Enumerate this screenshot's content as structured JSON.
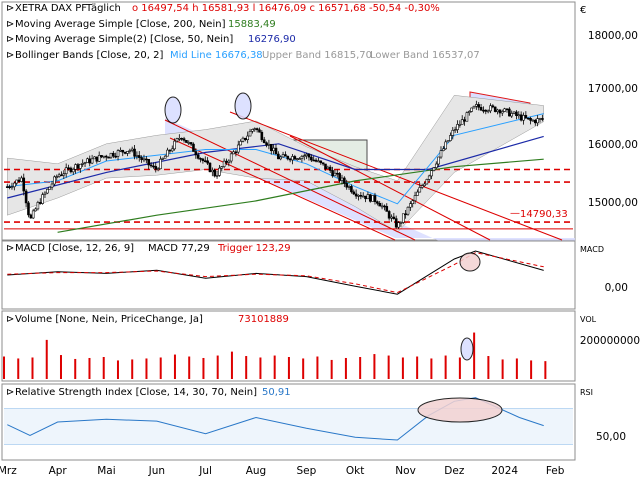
{
  "currency_symbol": "€",
  "colors": {
    "frame": "#8c8c8c",
    "price": "#000000",
    "up": "#ffffff",
    "down": "#000000",
    "sma200": "#2f7d1f",
    "sma50": "#1c2aa8",
    "bollinger_mid": "#2aa0ff",
    "bollinger_fill": "#e6e6e6",
    "red": "#dd0000",
    "channel_fill": "#d8dcff",
    "macd": "#000000",
    "trigger": "#dd0000",
    "volume": "#dd0000",
    "rsi": "#2a78c8",
    "rsi_band": "#bcd8f3"
  },
  "legend": {
    "title_symbol": "XETRA DAX PF",
    "title_period": "Täglich",
    "title_ohlc": "o 16497,54 h 16581,93 l 16476,09 c 16571,68 -50,54 -0,30%",
    "sma200_label": "Moving Average Simple [Close, 200, Nein]",
    "sma200_value": "15883,49",
    "sma50_label": "Moving Average Simple(2) [Close, 50, Nein]",
    "sma50_value": "16276,90",
    "bb_label": "Bollinger Bands [Close, 20, 2]",
    "bb_mid": "Mid Line 16676,38",
    "bb_upper": "Upper Band 16815,70",
    "bb_lower": "Lower Band 16537,07",
    "macd_label": "MACD [Close, 12, 26, 9]",
    "macd_value": "MACD 77,29",
    "macd_trigger": "Trigger 123,29",
    "volume_label": "Volume [None, Nein, PriceChange, Ja]",
    "volume_value": "73101889",
    "rsi_label": "Relative Strength Index [Close, 14, 30, 70, Nein]",
    "rsi_value": "50,91"
  },
  "chart_data": [
    {
      "type": "candlestick",
      "panel": "price",
      "title": "XETRA DAX PF Täglich",
      "ylim": [
        14500,
        18600
      ],
      "yticks": [
        15000,
        16000,
        17000,
        18000
      ],
      "ytick_labels": [
        "15000,00",
        "16000,00",
        "17000,00",
        "18000,00"
      ],
      "xticks": [
        "Mrz",
        "Apr",
        "Mai",
        "Jun",
        "Jul",
        "Aug",
        "Sep",
        "Okt",
        "Nov",
        "Dez",
        "2024",
        "Feb"
      ],
      "x_range": [
        "2023-02-27",
        "2024-02-12"
      ],
      "series": [
        {
          "name": "XETRA DAX PF",
          "x": [
            "2023-03-01",
            "2023-03-10",
            "2023-03-15",
            "2023-03-20",
            "2023-04-01",
            "2023-04-15",
            "2023-05-01",
            "2023-05-15",
            "2023-05-31",
            "2023-06-16",
            "2023-07-07",
            "2023-07-31",
            "2023-08-15",
            "2023-09-01",
            "2023-09-15",
            "2023-10-01",
            "2023-10-15",
            "2023-10-27",
            "2023-11-15",
            "2023-12-01",
            "2023-12-14",
            "2023-12-29",
            "2024-01-17",
            "2024-01-25"
          ],
          "close": [
            15400,
            15550,
            14800,
            15100,
            15600,
            15800,
            15950,
            16050,
            15700,
            16300,
            15600,
            16450,
            15900,
            15950,
            15700,
            15300,
            15150,
            14700,
            15600,
            16400,
            16800,
            16750,
            16550,
            16580
          ]
        },
        {
          "name": "Moving Average Simple [Close, 200, Nein]",
          "x": [
            "2023-04-01",
            "2023-06-01",
            "2023-08-01",
            "2023-10-01",
            "2023-12-01",
            "2024-01-25"
          ],
          "values": [
            14600,
            14900,
            15150,
            15500,
            15750,
            15880
          ]
        },
        {
          "name": "Moving Average Simple(2) [Close, 50, Nein]",
          "x": [
            "2023-03-01",
            "2023-05-01",
            "2023-07-01",
            "2023-08-15",
            "2023-10-01",
            "2023-11-15",
            "2024-01-25"
          ],
          "values": [
            15200,
            15650,
            16000,
            16150,
            15700,
            15700,
            16280
          ]
        },
        {
          "name": "Bollinger Bands [Close, 20, 2]",
          "x": [
            "2023-03-01",
            "2023-04-01",
            "2023-05-01",
            "2023-06-01",
            "2023-07-01",
            "2023-08-01",
            "2023-09-01",
            "2023-10-01",
            "2023-10-27",
            "2023-12-01",
            "2024-01-25"
          ],
          "upper": [
            15900,
            15800,
            16150,
            16300,
            16400,
            16550,
            16100,
            15750,
            15500,
            17000,
            16820
          ],
          "mid": [
            15400,
            15500,
            15850,
            15950,
            16050,
            16050,
            15800,
            15400,
            15100,
            16300,
            16680
          ],
          "lower": [
            14900,
            15200,
            15550,
            15600,
            15700,
            15550,
            15500,
            15050,
            14600,
            15650,
            16540
          ]
        }
      ],
      "horizontal_lines": [
        15700,
        15480,
        14780,
        14660
      ],
      "annotation": "14790,33"
    },
    {
      "type": "line",
      "panel": "macd",
      "title": "MACD [Close, 12, 26, 9]",
      "ylim": [
        -380,
        420
      ],
      "yticks": [
        0
      ],
      "ytick_labels": [
        "0,00"
      ],
      "series": [
        {
          "name": "MACD",
          "x": [
            "2023-03-01",
            "2023-04-01",
            "2023-05-01",
            "2023-06-01",
            "2023-07-01",
            "2023-08-01",
            "2023-09-01",
            "2023-10-01",
            "2023-10-27",
            "2023-12-01",
            "2023-12-14",
            "2024-01-25"
          ],
          "values": [
            20,
            60,
            40,
            80,
            -20,
            40,
            0,
            -120,
            -220,
            220,
            320,
            77
          ]
        },
        {
          "name": "Trigger",
          "x": [
            "2023-03-01",
            "2023-04-01",
            "2023-05-01",
            "2023-06-01",
            "2023-07-01",
            "2023-08-01",
            "2023-09-01",
            "2023-10-01",
            "2023-10-27",
            "2023-12-01",
            "2023-12-14",
            "2024-01-25"
          ],
          "values": [
            30,
            50,
            50,
            70,
            0,
            30,
            10,
            -90,
            -200,
            150,
            300,
            123
          ]
        }
      ]
    },
    {
      "type": "bar",
      "panel": "volume",
      "title": "Volume [None, Nein, PriceChange, Ja]",
      "ylim": [
        0,
        270000000
      ],
      "yticks": [
        200000000
      ],
      "ytick_labels": [
        "200000000"
      ],
      "x_range": [
        "2023-02-27",
        "2024-01-26"
      ],
      "values": [
        92000000,
        84000000,
        88000000,
        160000000,
        98000000,
        82000000,
        86000000,
        90000000,
        76000000,
        80000000,
        84000000,
        88000000,
        100000000,
        92000000,
        86000000,
        96000000,
        112000000,
        94000000,
        88000000,
        96000000,
        90000000,
        84000000,
        92000000,
        78000000,
        86000000,
        90000000,
        102000000,
        96000000,
        88000000,
        92000000,
        84000000,
        96000000,
        88000000,
        190000000,
        94000000,
        80000000,
        84000000,
        76000000,
        73100000
      ]
    },
    {
      "type": "line",
      "panel": "rsi",
      "title": "Relative Strength Index [Close, 14, 30, 70, Nein]",
      "ylim": [
        15,
        95
      ],
      "yticks": [
        50
      ],
      "ytick_labels": [
        "50,00"
      ],
      "reference_lines": [
        30,
        70
      ],
      "series": [
        {
          "name": "RSI",
          "x": [
            "2023-03-01",
            "2023-03-15",
            "2023-04-01",
            "2023-05-01",
            "2023-06-01",
            "2023-07-01",
            "2023-08-01",
            "2023-09-01",
            "2023-10-01",
            "2023-10-27",
            "2023-11-15",
            "2023-12-01",
            "2023-12-14",
            "2024-01-10",
            "2024-01-25"
          ],
          "values": [
            52,
            40,
            55,
            58,
            56,
            42,
            60,
            48,
            38,
            35,
            62,
            78,
            82,
            60,
            51
          ]
        }
      ]
    }
  ]
}
